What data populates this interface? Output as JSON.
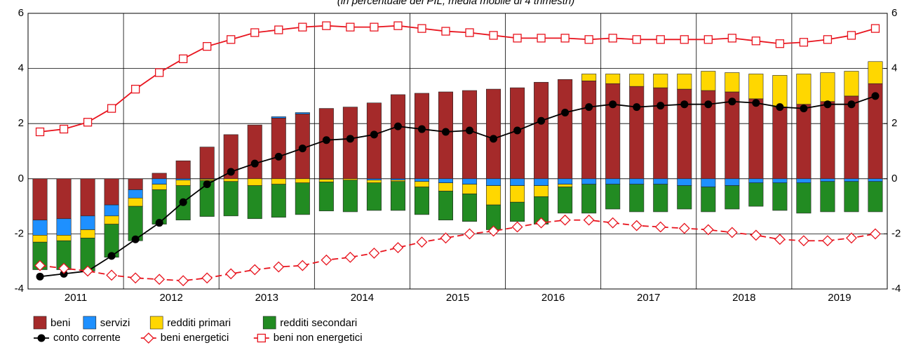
{
  "chart_data": {
    "type": "bar",
    "subtitle": "(in percentuale del PIL; media mobile di 4 trimestri)",
    "groups": [
      "2011",
      "2012",
      "2013",
      "2014",
      "2015",
      "2016",
      "2017",
      "2018",
      "2019"
    ],
    "ylim": [
      -4,
      6
    ],
    "yticks": [
      -4,
      -2,
      0,
      2,
      4,
      6
    ],
    "y2lim": [
      -4,
      6
    ],
    "y2ticks": [
      -4,
      -2,
      0,
      2,
      4,
      6
    ],
    "grid": true,
    "series": [
      {
        "name": "beni",
        "type": "bar",
        "color": "#a52a2a",
        "values": [
          -1.5,
          -1.45,
          -1.35,
          -0.95,
          -0.4,
          0.2,
          0.65,
          1.15,
          1.6,
          1.95,
          2.2,
          2.35,
          2.55,
          2.6,
          2.75,
          3.05,
          3.1,
          3.15,
          3.2,
          3.25,
          3.3,
          3.5,
          3.6,
          3.55,
          3.45,
          3.35,
          3.3,
          3.25,
          3.2,
          3.15,
          2.9,
          2.6,
          2.7,
          2.8,
          3.0,
          3.45
        ]
      },
      {
        "name": "servizi",
        "type": "bar",
        "color": "#1e90ff",
        "values": [
          -0.55,
          -0.6,
          -0.5,
          -0.4,
          -0.3,
          -0.2,
          -0.05,
          -0.02,
          0,
          0,
          0.05,
          0.05,
          -0.02,
          0,
          -0.05,
          -0.05,
          -0.1,
          -0.15,
          -0.2,
          -0.25,
          -0.25,
          -0.25,
          -0.2,
          -0.2,
          -0.2,
          -0.2,
          -0.2,
          -0.25,
          -0.3,
          -0.25,
          -0.15,
          -0.15,
          -0.15,
          -0.1,
          -0.1,
          -0.1
        ]
      },
      {
        "name": "redditi primari",
        "type": "bar",
        "color": "#ffd700",
        "values": [
          -0.25,
          -0.2,
          -0.3,
          -0.3,
          -0.3,
          -0.2,
          -0.2,
          -0.05,
          -0.1,
          -0.25,
          -0.2,
          -0.15,
          -0.1,
          -0.05,
          -0.1,
          -0.05,
          -0.2,
          -0.3,
          -0.35,
          -0.7,
          -0.6,
          -0.4,
          -0.1,
          0.25,
          0.35,
          0.45,
          0.5,
          0.55,
          0.7,
          0.7,
          0.9,
          1.15,
          1.1,
          1.05,
          0.9,
          0.8
        ]
      },
      {
        "name": "redditi secondari",
        "type": "bar",
        "color": "#228b22",
        "values": [
          -1.0,
          -1.05,
          -1.2,
          -1.2,
          -1.25,
          -1.25,
          -1.25,
          -1.3,
          -1.25,
          -1.2,
          -1.2,
          -1.15,
          -1.05,
          -1.15,
          -1.0,
          -1.05,
          -1.0,
          -1.05,
          -1.0,
          -0.9,
          -0.7,
          -1.0,
          -0.95,
          -1.05,
          -0.9,
          -1.0,
          -1.0,
          -0.85,
          -0.9,
          -0.85,
          -0.85,
          -1.0,
          -1.1,
          -1.1,
          -1.1,
          -1.1
        ]
      },
      {
        "name": "conto corrente",
        "type": "line",
        "marker": "dot",
        "color": "#000000",
        "values": [
          -3.55,
          -3.45,
          -3.35,
          -2.8,
          -2.2,
          -1.6,
          -0.85,
          -0.2,
          0.25,
          0.55,
          0.8,
          1.1,
          1.4,
          1.45,
          1.6,
          1.9,
          1.8,
          1.7,
          1.75,
          1.45,
          1.75,
          2.1,
          2.4,
          2.6,
          2.7,
          2.6,
          2.65,
          2.7,
          2.7,
          2.8,
          2.75,
          2.6,
          2.55,
          2.7,
          2.7,
          3.0
        ]
      },
      {
        "name": "beni energetici",
        "type": "line",
        "marker": "diamond",
        "dashed": true,
        "color": "#e8141e",
        "values": [
          -3.15,
          -3.25,
          -3.35,
          -3.5,
          -3.6,
          -3.65,
          -3.7,
          -3.6,
          -3.45,
          -3.3,
          -3.2,
          -3.15,
          -2.95,
          -2.85,
          -2.7,
          -2.5,
          -2.3,
          -2.15,
          -2.0,
          -1.9,
          -1.75,
          -1.6,
          -1.5,
          -1.5,
          -1.6,
          -1.7,
          -1.75,
          -1.8,
          -1.85,
          -1.95,
          -2.05,
          -2.2,
          -2.25,
          -2.25,
          -2.15,
          -2.0
        ]
      },
      {
        "name": "beni non energetici",
        "type": "line",
        "marker": "square",
        "color": "#e8141e",
        "values": [
          1.7,
          1.8,
          2.05,
          2.55,
          3.25,
          3.85,
          4.35,
          4.8,
          5.05,
          5.3,
          5.4,
          5.5,
          5.55,
          5.5,
          5.5,
          5.55,
          5.45,
          5.35,
          5.3,
          5.2,
          5.1,
          5.1,
          5.1,
          5.05,
          5.1,
          5.05,
          5.05,
          5.05,
          5.05,
          5.1,
          5.0,
          4.9,
          4.95,
          5.05,
          5.2,
          5.45
        ]
      }
    ]
  }
}
